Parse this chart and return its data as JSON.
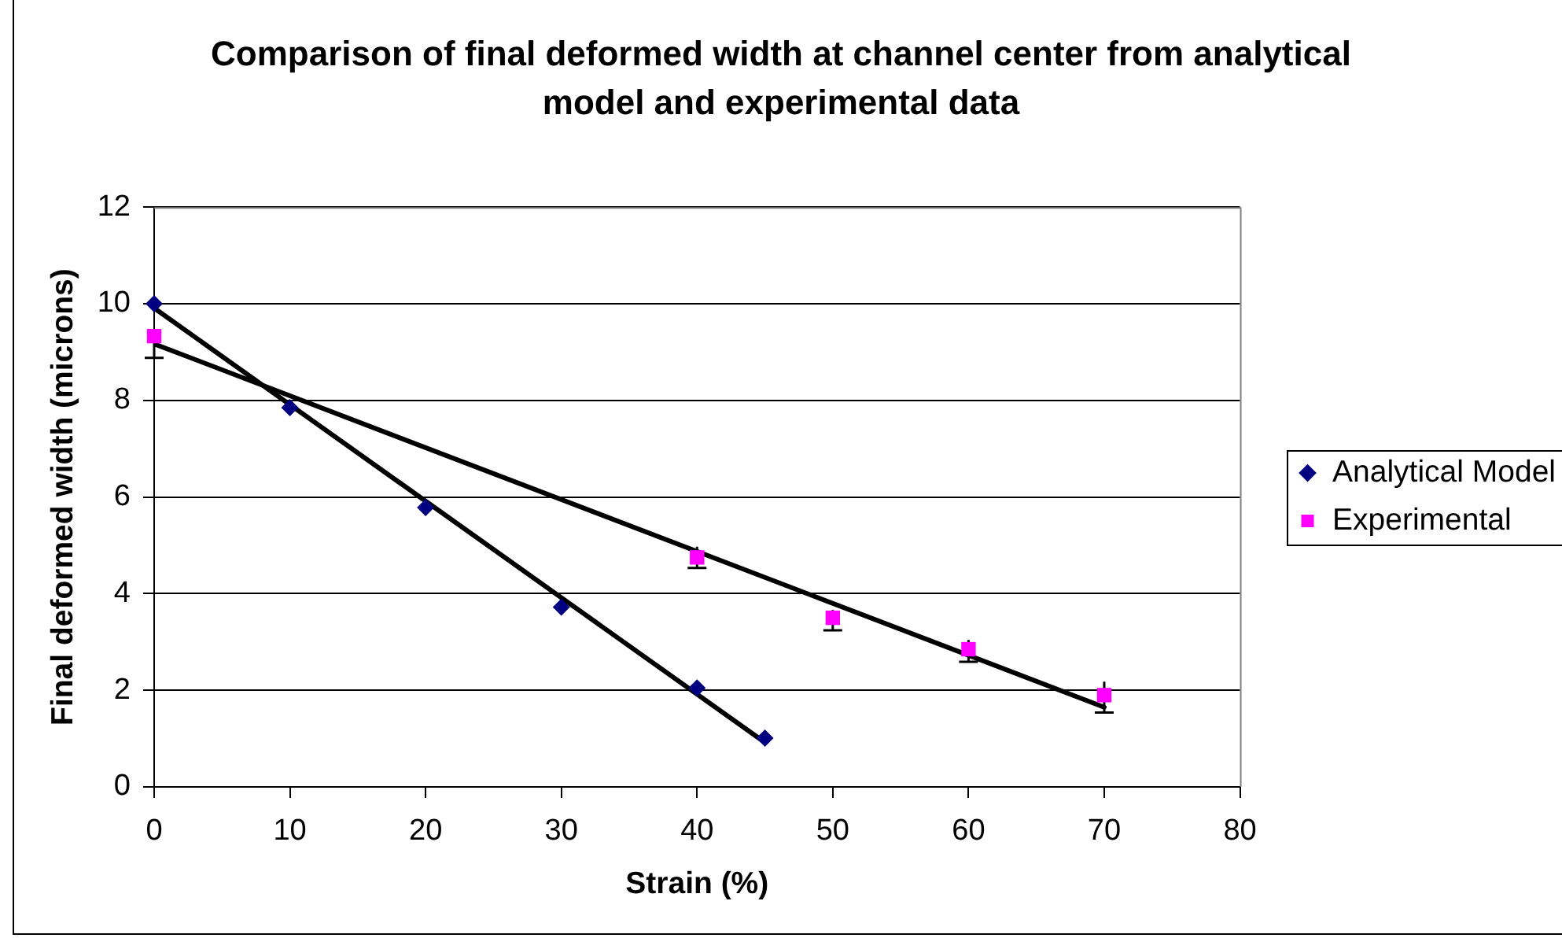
{
  "chart_data": {
    "type": "scatter",
    "title": "Comparison of final deformed width at channel center from analytical model and experimental data",
    "xlabel": "Strain (%)",
    "ylabel": "Final deformed width (microns)",
    "xlim": [
      0,
      80
    ],
    "xticks": [
      0,
      10,
      20,
      30,
      40,
      50,
      60,
      70,
      80
    ],
    "ylim": [
      0,
      12
    ],
    "yticks": [
      0,
      2,
      4,
      6,
      8,
      10,
      12
    ],
    "grid": "y",
    "legend": "right",
    "series": [
      {
        "name": "Analytical Model",
        "color": "#000080",
        "marker": "diamond",
        "x": [
          0,
          10,
          20,
          30,
          40,
          45
        ],
        "values": [
          10.0,
          7.85,
          5.78,
          3.72,
          2.05,
          1.01
        ]
      },
      {
        "name": "Experimental",
        "color": "#ff00ff",
        "marker": "square",
        "x": [
          0,
          40,
          50,
          60,
          70
        ],
        "values": [
          9.33,
          4.75,
          3.5,
          2.85,
          1.9
        ],
        "errors": [
          [
            8.88,
            9.33
          ],
          [
            4.53,
            4.97
          ],
          [
            3.24,
            3.66
          ],
          [
            2.59,
            3.04
          ],
          [
            1.54,
            2.18
          ]
        ]
      },
      {
        "type": "line",
        "color": "#000000",
        "marker": "none",
        "line_style": "solid",
        "x": [
          0,
          45
        ],
        "values": [
          9.91,
          0.92
        ]
      },
      {
        "type": "line",
        "color": "#000000",
        "marker": "none",
        "line_style": "solid",
        "x": [
          0,
          70
        ],
        "values": [
          9.17,
          1.65
        ]
      }
    ]
  }
}
